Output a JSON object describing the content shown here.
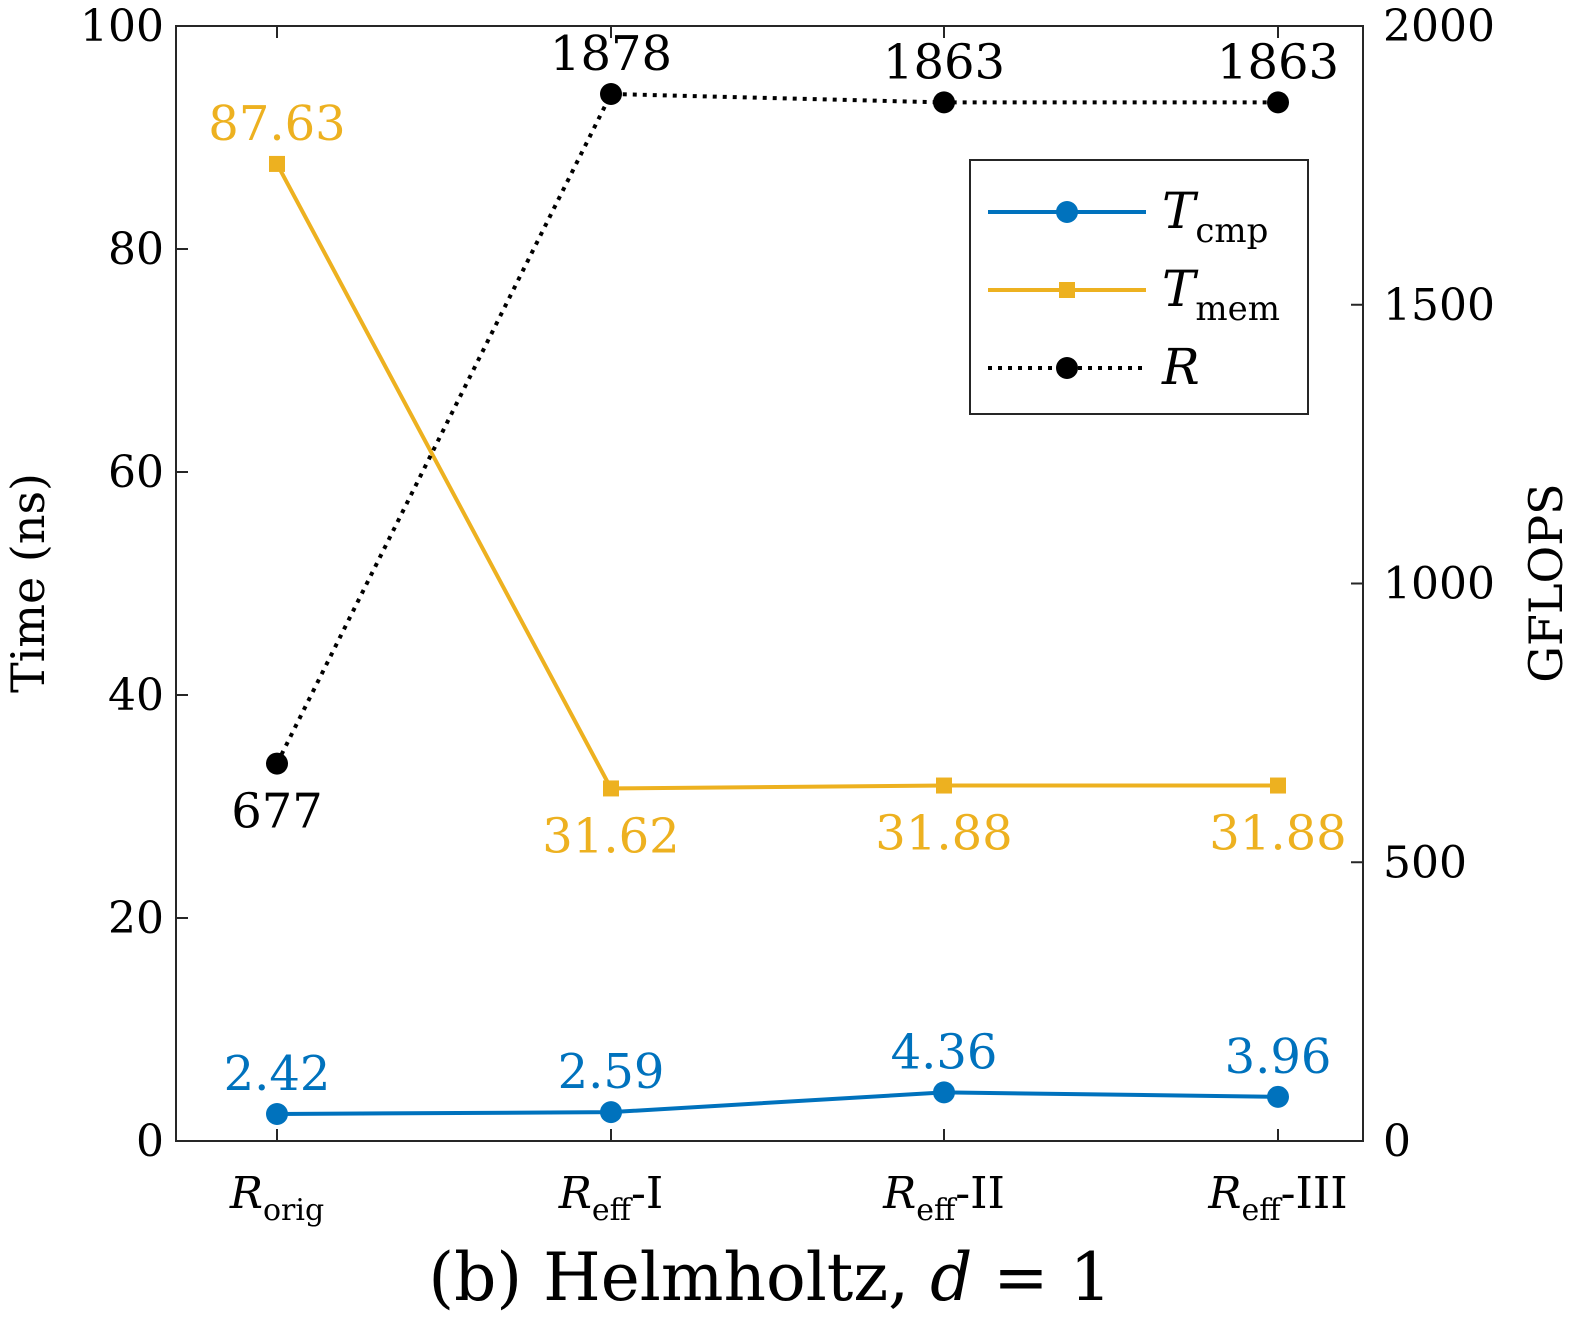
{
  "chart_data": {
    "type": "line",
    "title": "",
    "caption": {
      "prefix": "(b) Helmholtz, ",
      "variable": "d",
      "suffix": " = 1"
    },
    "categories": [
      {
        "base": "R",
        "sub": "orig",
        "suffix": ""
      },
      {
        "base": "R",
        "sub": "eff",
        "suffix": "-I"
      },
      {
        "base": "R",
        "sub": "eff",
        "suffix": "-II"
      },
      {
        "base": "R",
        "sub": "eff",
        "suffix": "-III"
      }
    ],
    "left_axis": {
      "label": "Time (ns)",
      "ylim": [
        0,
        100
      ],
      "ticks": [
        0,
        20,
        40,
        60,
        80,
        100
      ]
    },
    "right_axis": {
      "label": "GFLOPS",
      "ylim": [
        0,
        2000
      ],
      "ticks": [
        0,
        500,
        1000,
        1500,
        2000
      ]
    },
    "series": [
      {
        "name": "T_cmp",
        "legend_base": "T",
        "legend_sub": "cmp",
        "axis": "left",
        "color": "#0072BD",
        "marker": "circle",
        "line_style": "solid",
        "values": [
          2.42,
          2.59,
          4.36,
          3.96
        ],
        "labels": [
          "2.42",
          "2.59",
          "4.36",
          "3.96"
        ],
        "label_position": "above"
      },
      {
        "name": "T_mem",
        "legend_base": "T",
        "legend_sub": "mem",
        "axis": "left",
        "color": "#EDB120",
        "marker": "square",
        "line_style": "solid",
        "values": [
          87.63,
          31.62,
          31.88,
          31.88
        ],
        "labels": [
          "87.63",
          "31.62",
          "31.88",
          "31.88"
        ],
        "label_position": [
          "above",
          "below",
          "below",
          "below"
        ]
      },
      {
        "name": "R",
        "legend_base": "R",
        "legend_sub": "",
        "axis": "right",
        "color": "#000000",
        "marker": "circle",
        "line_style": "dotted",
        "values": [
          677,
          1878,
          1863,
          1863
        ],
        "labels": [
          "677",
          "1878",
          "1863",
          "1863"
        ],
        "label_position": [
          "below",
          "above",
          "above",
          "above"
        ]
      }
    ],
    "legend_position": "top-right",
    "grid": false
  }
}
